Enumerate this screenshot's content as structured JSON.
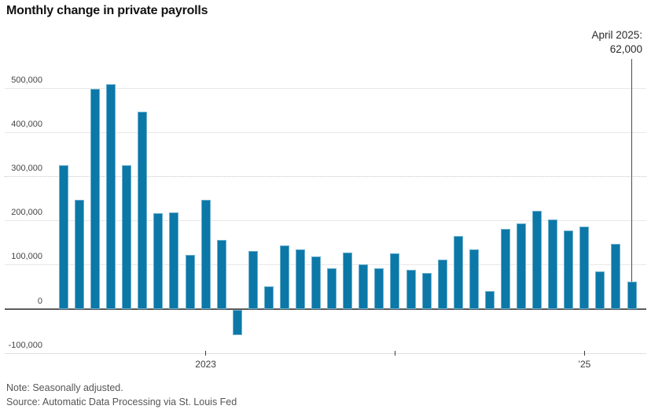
{
  "title": "Monthly change in private payrolls",
  "note": "Note: Seasonally adjusted.",
  "source": "Source: Automatic Data Processing via St. Louis Fed",
  "colors": {
    "bar": "#0b78a8",
    "bar_edge": "#c3deec",
    "grid": "#e8e8e8",
    "dotted_grid": "#c6c6c6",
    "zero_axis": "#5b5b5b",
    "annotation_line": "#4a4a4a",
    "title_text": "#121212",
    "label_text": "#454545",
    "note_text": "#555555"
  },
  "chart_data": {
    "type": "bar",
    "title": "Monthly change in private payrolls",
    "xlabel": "",
    "ylabel": "",
    "grid": "horizontal",
    "ylim": [
      -100000,
      560000
    ],
    "months": [
      "Apr 2022",
      "May 2022",
      "Jun 2022",
      "Jul 2022",
      "Aug 2022",
      "Sep 2022",
      "Oct 2022",
      "Nov 2022",
      "Dec 2022",
      "Jan 2023",
      "Feb 2023",
      "Mar 2023",
      "Apr 2023",
      "May 2023",
      "Jun 2023",
      "Jul 2023",
      "Aug 2023",
      "Sep 2023",
      "Oct 2023",
      "Nov 2023",
      "Dec 2023",
      "Jan 2024",
      "Feb 2024",
      "Mar 2024",
      "Apr 2024",
      "May 2024",
      "Jun 2024",
      "Jul 2024",
      "Aug 2024",
      "Sep 2024",
      "Oct 2024",
      "Nov 2024",
      "Dec 2024",
      "Jan 2025",
      "Feb 2025",
      "Mar 2025",
      "Apr 2025"
    ],
    "values": [
      325000,
      247000,
      498000,
      508000,
      325000,
      447000,
      216000,
      219000,
      122000,
      247000,
      156000,
      -58000,
      131000,
      50000,
      144000,
      135000,
      118000,
      92000,
      128000,
      100000,
      92000,
      126000,
      89000,
      81000,
      112000,
      164000,
      134000,
      40000,
      180000,
      193000,
      222000,
      202000,
      177000,
      186000,
      84000,
      147000,
      62000
    ],
    "yticks": [
      {
        "value": 500000,
        "label": "500,000",
        "style": "solid"
      },
      {
        "value": 400000,
        "label": "400,000",
        "style": "solid"
      },
      {
        "value": 300000,
        "label": "300,000",
        "style": "dotted"
      },
      {
        "value": 200000,
        "label": "200,000",
        "style": "solid"
      },
      {
        "value": 100000,
        "label": "100,000",
        "style": "solid"
      },
      {
        "value": 0,
        "label": "0",
        "style": "axis"
      },
      {
        "value": -100000,
        "label": "-100,000",
        "style": "baseline"
      }
    ],
    "xticks": [
      {
        "index": 9,
        "label": "2023"
      },
      {
        "index": 21,
        "label": ""
      },
      {
        "index": 33,
        "label": "’25"
      }
    ],
    "annotation": {
      "line1": "April 2025:",
      "line2": "62,000",
      "index": 36,
      "value": 62000
    }
  }
}
